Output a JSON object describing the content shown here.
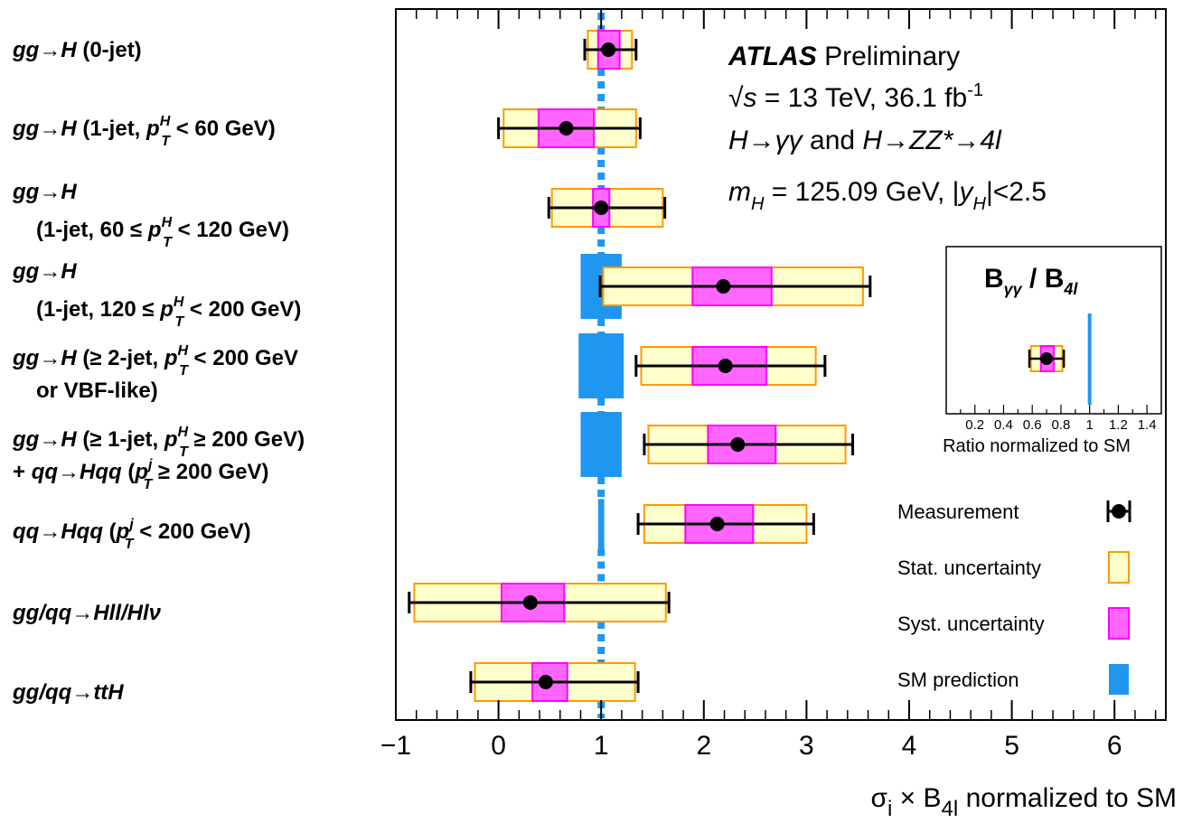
{
  "chart_data": {
    "type": "scatter",
    "style": "forest-plot",
    "xlabel_parts": [
      "σ",
      "i",
      " × B",
      "4l",
      " normalized to SM"
    ],
    "xlim": [
      -1,
      6.5
    ],
    "xticks": [
      "−1",
      "0",
      "1",
      "2",
      "3",
      "4",
      "5",
      "6"
    ],
    "colors": {
      "stat": "#ffffcc",
      "stat_edge": "#ff9900",
      "syst": "#ff66ff",
      "syst_edge": "#ff00ff",
      "sm": "#1f97f0"
    },
    "categories": [
      {
        "lines": [
          [
            {
              "t": "gg"
            },
            {
              "t": "→"
            },
            {
              "t": "H"
            },
            {
              "t": " (0-jet)"
            }
          ]
        ]
      },
      {
        "lines": [
          [
            {
              "t": "gg"
            },
            {
              "t": "→"
            },
            {
              "t": "H"
            },
            {
              "t": " (1-jet,  "
            },
            {
              "t": "p"
            },
            {
              "t": "H"
            },
            {
              "t": "T"
            },
            {
              "t": " < 60 GeV)"
            }
          ]
        ]
      },
      {
        "lines": [
          [
            {
              "t": "gg"
            },
            {
              "t": "→"
            },
            {
              "t": "H"
            }
          ],
          [
            {
              "t": "(1-jet, 60 "
            },
            {
              "t": "≤"
            },
            {
              "t": "  "
            },
            {
              "t": "p"
            },
            {
              "t": "H"
            },
            {
              "t": "T"
            },
            {
              "t": " < 120 GeV)"
            }
          ]
        ]
      },
      {
        "lines": [
          [
            {
              "t": "gg"
            },
            {
              "t": "→"
            },
            {
              "t": "H"
            }
          ],
          [
            {
              "t": "(1-jet, 120 "
            },
            {
              "t": "≤"
            },
            {
              "t": "  "
            },
            {
              "t": "p"
            },
            {
              "t": "H"
            },
            {
              "t": "T"
            },
            {
              "t": " < 200 GeV)"
            }
          ]
        ]
      },
      {
        "lines": [
          [
            {
              "t": "gg"
            },
            {
              "t": "→"
            },
            {
              "t": "H"
            },
            {
              "t": " ("
            },
            {
              "t": "≥"
            },
            {
              "t": " 2-jet,  "
            },
            {
              "t": "p"
            },
            {
              "t": "H"
            },
            {
              "t": "T"
            },
            {
              "t": " < 200 GeV"
            }
          ],
          [
            {
              "t": "or VBF-like)"
            }
          ]
        ]
      },
      {
        "lines": [
          [
            {
              "t": "gg"
            },
            {
              "t": "→"
            },
            {
              "t": "H"
            },
            {
              "t": " ("
            },
            {
              "t": "≥"
            },
            {
              "t": " 1-jet,  "
            },
            {
              "t": "p"
            },
            {
              "t": "H"
            },
            {
              "t": "T"
            },
            {
              "t": " ≥ 200 GeV)"
            }
          ],
          [
            {
              "t": "+  "
            },
            {
              "t": "qq"
            },
            {
              "t": "→"
            },
            {
              "t": "Hqq"
            },
            {
              "t": " ("
            },
            {
              "t": "p"
            },
            {
              "t": "j"
            },
            {
              "t": "T"
            },
            {
              "t": " ≥ 200 GeV)"
            }
          ]
        ]
      },
      {
        "lines": [
          [
            {
              "t": "qq"
            },
            {
              "t": "→"
            },
            {
              "t": "Hqq"
            },
            {
              "t": " ("
            },
            {
              "t": "p"
            },
            {
              "t": "j"
            },
            {
              "t": "T"
            },
            {
              "t": " < 200 GeV)"
            }
          ]
        ]
      },
      {
        "lines": [
          [
            {
              "t": "gg/qq"
            },
            {
              "t": "→"
            },
            {
              "t": "Hll/Hl"
            },
            {
              "t": "ν"
            }
          ]
        ]
      },
      {
        "lines": [
          [
            {
              "t": "gg/qq"
            },
            {
              "t": "→"
            },
            {
              "t": "ttH"
            }
          ]
        ]
      }
    ],
    "points": [
      {
        "value": 1.07,
        "total": [
          0.84,
          1.34
        ],
        "stat": [
          0.87,
          1.3
        ],
        "syst": [
          0.97,
          1.18
        ],
        "sm": [
          0.93,
          1.07
        ]
      },
      {
        "value": 0.66,
        "total": [
          0.0,
          1.38
        ],
        "stat": [
          0.05,
          1.34
        ],
        "syst": [
          0.39,
          0.93
        ],
        "sm": [
          0.85,
          1.15
        ]
      },
      {
        "value": 1.0,
        "total": [
          0.49,
          1.62
        ],
        "stat": [
          0.52,
          1.6
        ],
        "syst": [
          0.92,
          1.08
        ],
        "sm": [
          0.85,
          1.15
        ]
      },
      {
        "value": 2.19,
        "total": [
          0.99,
          3.62
        ],
        "stat": [
          1.02,
          3.55
        ],
        "syst": [
          1.89,
          2.66
        ],
        "sm": [
          0.8,
          1.2
        ]
      },
      {
        "value": 2.21,
        "total": [
          1.34,
          3.18
        ],
        "stat": [
          1.39,
          3.09
        ],
        "syst": [
          1.89,
          2.61
        ],
        "sm": [
          0.78,
          1.22
        ]
      },
      {
        "value": 2.33,
        "total": [
          1.42,
          3.45
        ],
        "stat": [
          1.46,
          3.38
        ],
        "syst": [
          2.04,
          2.7
        ],
        "sm": [
          0.8,
          1.2
        ]
      },
      {
        "value": 2.13,
        "total": [
          1.36,
          3.07
        ],
        "stat": [
          1.42,
          3.0
        ],
        "syst": [
          1.82,
          2.48
        ],
        "sm": [
          0.97,
          1.03
        ]
      },
      {
        "value": 0.31,
        "total": [
          -0.87,
          1.66
        ],
        "stat": [
          -0.82,
          1.63
        ],
        "syst": [
          0.03,
          0.64
        ],
        "sm": [
          0.92,
          1.08
        ]
      },
      {
        "value": 0.46,
        "total": [
          -0.27,
          1.36
        ],
        "stat": [
          -0.23,
          1.33
        ],
        "syst": [
          0.33,
          0.67
        ],
        "sm": [
          0.92,
          1.08
        ]
      }
    ],
    "annotation": [
      [
        {
          "t": "ATLAS",
          "style": "bi"
        },
        {
          "t": " Preliminary",
          "style": "n"
        }
      ],
      [
        {
          "t": "√",
          "style": "n"
        },
        {
          "t": "s",
          "style": "i"
        },
        {
          "t": " = 13 TeV, 36.1 fb",
          "style": "n"
        },
        {
          "t": "-1",
          "style": "sup"
        }
      ],
      [
        {
          "t": "H",
          "style": "i"
        },
        {
          "t": "→",
          "style": "n"
        },
        {
          "t": "γγ",
          "style": "i"
        },
        {
          "t": " and ",
          "style": "n"
        },
        {
          "t": "H",
          "style": "i"
        },
        {
          "t": "→",
          "style": "n"
        },
        {
          "t": "ZZ*",
          "style": "i"
        },
        {
          "t": "→",
          "style": "n"
        },
        {
          "t": "4l",
          "style": "i"
        }
      ],
      [
        {
          "t": "m",
          "style": "i"
        },
        {
          "t": "H",
          "style": "sub"
        },
        {
          "t": " = 125.09 GeV, |",
          "style": "n"
        },
        {
          "t": "y",
          "style": "i"
        },
        {
          "t": "H",
          "style": "sub"
        },
        {
          "t": "|<2.5",
          "style": "n"
        }
      ]
    ],
    "inset": {
      "title_parts": [
        "B",
        "γγ",
        " / B",
        "4l"
      ],
      "value": 0.7,
      "total": [
        0.58,
        0.82
      ],
      "stat": [
        0.59,
        0.81
      ],
      "syst": [
        0.66,
        0.75
      ],
      "sm_line": 1.0,
      "xlim": [
        0,
        1.5
      ],
      "xtick_values": [
        0.2,
        0.4,
        0.6,
        0.8,
        1,
        1.2,
        1.4
      ],
      "xticks": [
        "0.2",
        "0.4",
        "0.6",
        "0.8",
        "1",
        "1.2",
        "1.4"
      ],
      "xlabel": "Ratio normalized to SM"
    },
    "legend": [
      "Measurement",
      "Stat. uncertainty",
      "Syst. uncertainty",
      "SM prediction"
    ],
    "legend_placement": "bottom-right"
  }
}
